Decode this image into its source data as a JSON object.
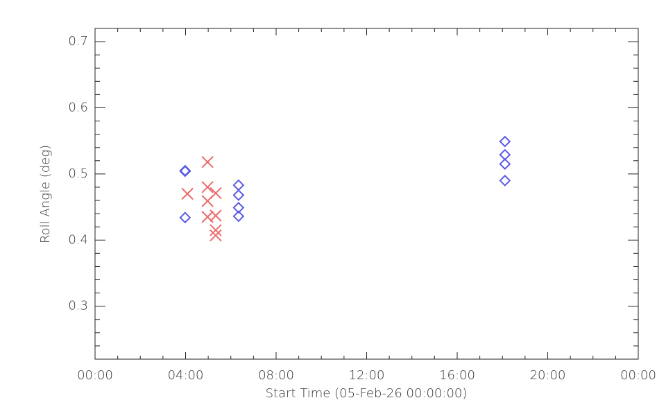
{
  "chart_data": {
    "type": "scatter",
    "xlabel": "Start Time (05-Feb-26 00:00:00)",
    "ylabel": "Roll Angle (deg)",
    "xlim": [
      0,
      24
    ],
    "ylim": [
      0.22,
      0.72
    ],
    "xticks": [
      {
        "value": 0,
        "label": "00:00"
      },
      {
        "value": 4,
        "label": "04:00"
      },
      {
        "value": 8,
        "label": "08:00"
      },
      {
        "value": 12,
        "label": "12:00"
      },
      {
        "value": 16,
        "label": "16:00"
      },
      {
        "value": 20,
        "label": "20:00"
      },
      {
        "value": 24,
        "label": "00:00"
      }
    ],
    "yticks": [
      0.3,
      0.4,
      0.5,
      0.6,
      0.7
    ],
    "xminorticks": [
      1,
      2,
      3,
      5,
      6,
      7,
      9,
      10,
      11,
      13,
      14,
      15,
      17,
      18,
      19,
      21,
      22,
      23
    ],
    "yminorticks": [
      0.24,
      0.26,
      0.28,
      0.32,
      0.34,
      0.36,
      0.38,
      0.42,
      0.44,
      0.46,
      0.48,
      0.52,
      0.54,
      0.56,
      0.58,
      0.62,
      0.64,
      0.66,
      0.68
    ],
    "series": [
      {
        "color": "#5a5ae6",
        "marker": "diamond",
        "x": [
          3.98,
          3.98,
          3.98,
          6.34,
          6.34,
          6.34,
          6.34,
          18.11,
          18.11,
          18.11,
          18.11
        ],
        "values": [
          0.505,
          0.504,
          0.434,
          0.483,
          0.468,
          0.449,
          0.436,
          0.549,
          0.529,
          0.515,
          0.49
        ]
      },
      {
        "color": "#ec6b6b",
        "marker": "x",
        "x": [
          4.08,
          4.97,
          4.97,
          4.97,
          4.97,
          5.33,
          5.33,
          5.33,
          5.33
        ],
        "values": [
          0.47,
          0.518,
          0.48,
          0.459,
          0.435,
          0.471,
          0.437,
          0.415,
          0.407
        ]
      }
    ]
  }
}
